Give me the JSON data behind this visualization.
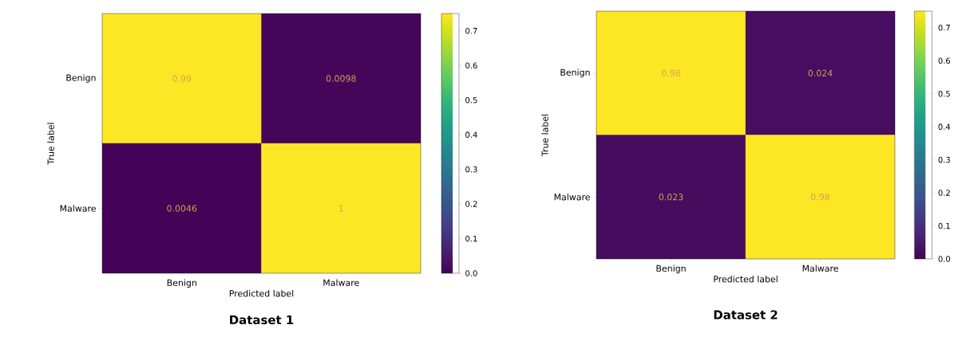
{
  "chart_data": [
    {
      "type": "heatmap",
      "title": "Dataset 1",
      "xlabel": "Predicted label",
      "ylabel": "True label",
      "categories": [
        "Benign",
        "Malware"
      ],
      "y_categories": [
        "Benign",
        "Malware"
      ],
      "cells": [
        [
          0.99,
          0.0098
        ],
        [
          0.0046,
          1
        ]
      ],
      "clim": [
        0,
        0.75
      ],
      "cticks": [
        {
          "value": 0,
          "label": "0.0"
        },
        0.1,
        0.2,
        0.3,
        0.4,
        0.5,
        0.6,
        0.7
      ],
      "data_labels": true
    },
    {
      "type": "heatmap",
      "title": "Dataset 2",
      "xlabel": "Predicted label",
      "ylabel": "True label",
      "categories": [
        "Benign",
        "Malware"
      ],
      "y_categories": [
        "Benign",
        "Malware"
      ],
      "cells": [
        [
          0.98,
          0.024
        ],
        [
          0.023,
          0.98
        ]
      ],
      "clim": [
        0,
        0.75
      ],
      "cticks": [
        {
          "value": 0,
          "label": "0.0"
        },
        0.1,
        0.2,
        0.3,
        0.4,
        0.5,
        0.6,
        0.7
      ],
      "data_labels": true
    }
  ]
}
